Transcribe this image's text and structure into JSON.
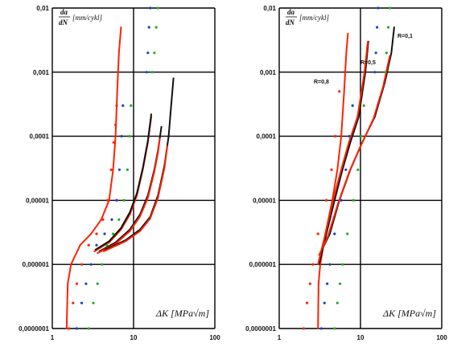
{
  "chart_data": [
    {
      "type": "line",
      "id": "left",
      "x_scale": "log",
      "y_scale": "log",
      "xlim": [
        1,
        100
      ],
      "ylim": [
        1e-07,
        0.01
      ],
      "x_ticks": [
        "1",
        "10",
        "100"
      ],
      "y_ticks": [
        "0,0000001",
        "0,000001",
        "0,00001",
        "0,0001",
        "0,001",
        "0,01"
      ],
      "ylabel_num": "da",
      "ylabel_den": "dN",
      "ylabel_unit": "[mm/cykl]",
      "xlabel": "ΔK [MPa√m]",
      "grid": true,
      "series": [
        {
          "color": "#ff2200",
          "style": "line",
          "points": [
            [
              1.5,
              1e-07
            ],
            [
              1.55,
              5e-07
            ],
            [
              1.7,
              1e-06
            ],
            [
              2.2,
              2e-06
            ],
            [
              3.0,
              3e-06
            ],
            [
              4.0,
              5e-06
            ],
            [
              5.0,
              1e-05
            ],
            [
              5.6,
              3e-05
            ],
            [
              6.0,
              0.0001
            ],
            [
              6.3,
              0.0005
            ],
            [
              6.6,
              0.002
            ],
            [
              7.0,
              0.005
            ]
          ]
        },
        {
          "color": "#ff2200",
          "style": "line",
          "points": [
            [
              3.3,
              1.6e-06
            ],
            [
              5,
              2.2e-06
            ],
            [
              7,
              3.5e-06
            ],
            [
              9,
              6e-06
            ],
            [
              11,
              1.2e-05
            ],
            [
              13,
              3e-05
            ],
            [
              15,
              8e-05
            ],
            [
              16.5,
              0.0002
            ]
          ]
        },
        {
          "color": "#111111",
          "style": "line",
          "points": [
            [
              3.4,
              1.7e-06
            ],
            [
              5,
              2.3e-06
            ],
            [
              7,
              3.7e-06
            ],
            [
              9,
              6.5e-06
            ],
            [
              11,
              1.3e-05
            ],
            [
              13,
              3.2e-05
            ],
            [
              15,
              8.5e-05
            ],
            [
              16.5,
              0.00022
            ]
          ]
        },
        {
          "color": "#111111",
          "style": "line",
          "points": [
            [
              3.8,
              1.6e-06
            ],
            [
              6,
              2.2e-06
            ],
            [
              9,
              3.5e-06
            ],
            [
              12,
              6e-06
            ],
            [
              15,
              1.2e-05
            ],
            [
              18,
              3e-05
            ],
            [
              20,
              6e-05
            ],
            [
              22,
              0.00014
            ]
          ]
        },
        {
          "color": "#ff2200",
          "style": "line",
          "points": [
            [
              3.6,
              1.5e-06
            ],
            [
              6,
              2.1e-06
            ],
            [
              9,
              3.3e-06
            ],
            [
              12,
              5.6e-06
            ],
            [
              15,
              1.1e-05
            ],
            [
              18,
              2.8e-05
            ],
            [
              20,
              5.6e-05
            ],
            [
              21,
              9e-05
            ]
          ]
        },
        {
          "color": "#111111",
          "style": "line",
          "points": [
            [
              4.5,
              1.7e-06
            ],
            [
              8,
              2.4e-06
            ],
            [
              12,
              3.5e-06
            ],
            [
              16,
              5.5e-06
            ],
            [
              20,
              1.2e-05
            ],
            [
              24,
              3.5e-05
            ],
            [
              27,
              0.0001
            ],
            [
              29,
              0.0003
            ],
            [
              31,
              0.0008
            ]
          ]
        },
        {
          "color": "#ff2200",
          "style": "line",
          "points": [
            [
              4.3,
              1.6e-06
            ],
            [
              8,
              2.3e-06
            ],
            [
              12,
              3.3e-06
            ],
            [
              16,
              5.2e-06
            ],
            [
              20,
              1.1e-05
            ],
            [
              24,
              3.2e-05
            ],
            [
              26,
              7e-05
            ]
          ]
        },
        {
          "color": "#ff2200",
          "style": "markers",
          "points": [
            [
              1.6,
              1e-07
            ],
            [
              1.8,
              2.5e-07
            ],
            [
              2.0,
              5e-07
            ],
            [
              2.3,
              1e-06
            ],
            [
              2.8,
              2e-06
            ],
            [
              3.5,
              3e-06
            ],
            [
              4.2,
              5e-06
            ],
            [
              4.8,
              1e-05
            ],
            [
              5.3,
              3e-05
            ],
            [
              5.7,
              8e-05
            ],
            [
              6.0,
              0.00015
            ],
            [
              6.2,
              0.0003
            ]
          ]
        },
        {
          "color": "#1144cc",
          "style": "markers",
          "points": [
            [
              2.0,
              1e-07
            ],
            [
              2.3,
              2.5e-07
            ],
            [
              2.6,
              5e-07
            ],
            [
              3.0,
              1e-06
            ],
            [
              3.5,
              2e-06
            ],
            [
              4.4,
              3e-06
            ],
            [
              5.4,
              5e-06
            ],
            [
              6.2,
              1e-05
            ],
            [
              6.7,
              3e-05
            ],
            [
              7.1,
              0.0001
            ],
            [
              7.4,
              0.0003
            ]
          ]
        },
        {
          "color": "#22aa22",
          "style": "markers",
          "points": [
            [
              2.8,
              1e-07
            ],
            [
              3.2,
              2.5e-07
            ],
            [
              3.6,
              5e-07
            ],
            [
              4.1,
              1e-06
            ],
            [
              4.7,
              2e-06
            ],
            [
              5.6,
              3e-06
            ],
            [
              6.6,
              5e-06
            ],
            [
              7.6,
              1e-05
            ],
            [
              8.4,
              3e-05
            ],
            [
              8.9,
              0.0001
            ],
            [
              9.3,
              0.0003
            ]
          ]
        },
        {
          "color": "#1144cc",
          "style": "markers",
          "points": [
            [
              14.5,
              0.001
            ],
            [
              15.0,
              0.002
            ],
            [
              15.5,
              0.005
            ],
            [
              16,
              0.01
            ]
          ]
        },
        {
          "color": "#22aa22",
          "style": "markers",
          "points": [
            [
              17,
              0.001
            ],
            [
              18,
              0.002
            ],
            [
              19,
              0.005
            ],
            [
              20,
              0.01
            ]
          ]
        }
      ]
    },
    {
      "type": "line",
      "id": "right",
      "x_scale": "log",
      "y_scale": "log",
      "xlim": [
        1,
        100
      ],
      "ylim": [
        1e-07,
        0.01
      ],
      "x_ticks": [
        "1",
        "10",
        "100"
      ],
      "y_ticks": [
        "0,0000001",
        "0,000001",
        "0,00001",
        "0,0001",
        "0,001",
        "0,01"
      ],
      "ylabel_num": "da",
      "ylabel_den": "dN",
      "ylabel_unit": "[mm/cykl]",
      "xlabel": "ΔK [MPa√m]",
      "grid": true,
      "annotations": [
        "R=0,1",
        "R=0,5",
        "R=0,8"
      ],
      "series": [
        {
          "color": "#ff2200",
          "style": "line",
          "points": [
            [
              3.0,
              1e-07
            ],
            [
              3.05,
              5e-07
            ],
            [
              3.2,
              1e-06
            ],
            [
              3.7,
              3e-06
            ],
            [
              4.5,
              1e-05
            ],
            [
              5.2,
              3e-05
            ],
            [
              5.8,
              0.0001
            ],
            [
              6.3,
              0.0005
            ],
            [
              6.7,
              0.002
            ],
            [
              7.0,
              0.004
            ]
          ]
        },
        {
          "color": "#111111",
          "style": "line",
          "points": [
            [
              3.1,
              1e-06
            ],
            [
              3.8,
              3e-06
            ],
            [
              4.8,
              1e-05
            ],
            [
              6.0,
              3e-05
            ],
            [
              7.5,
              8e-05
            ],
            [
              9.5,
              0.0002
            ],
            [
              11.5,
              0.001
            ],
            [
              12.5,
              0.003
            ]
          ]
        },
        {
          "color": "#ff2200",
          "style": "line",
          "points": [
            [
              3.0,
              1e-06
            ],
            [
              3.7,
              3e-06
            ],
            [
              4.6,
              1e-05
            ],
            [
              5.8,
              3e-05
            ],
            [
              7.2,
              8e-05
            ],
            [
              9.2,
              0.0002
            ],
            [
              11.2,
              0.001
            ],
            [
              12.3,
              0.003
            ]
          ]
        },
        {
          "color": "#111111",
          "style": "line",
          "points": [
            [
              3.2,
              1.5e-06
            ],
            [
              4.2,
              3e-06
            ],
            [
              5.5,
              1e-05
            ],
            [
              7.5,
              3e-05
            ],
            [
              10.5,
              8e-05
            ],
            [
              15,
              0.0002
            ],
            [
              20,
              0.0007
            ],
            [
              24,
              0.002
            ],
            [
              26,
              0.005
            ]
          ]
        },
        {
          "color": "#ff2200",
          "style": "line",
          "points": [
            [
              3.1,
              1.4e-06
            ],
            [
              4.0,
              2.8e-06
            ],
            [
              5.3,
              9e-06
            ],
            [
              7.3,
              2.8e-05
            ],
            [
              10.3,
              7.5e-05
            ],
            [
              14.5,
              0.00019
            ],
            [
              19,
              0.0006
            ],
            [
              23,
              0.0018
            ]
          ]
        },
        {
          "color": "#ff2200",
          "style": "markers",
          "points": [
            [
              2.0,
              1e-07
            ],
            [
              2.2,
              2.5e-07
            ],
            [
              2.4,
              5e-07
            ],
            [
              2.6,
              1e-06
            ],
            [
              3.0,
              3e-06
            ],
            [
              3.8,
              1e-05
            ],
            [
              4.4,
              3e-05
            ],
            [
              4.9,
              0.0001
            ],
            [
              5.5,
              0.0005
            ]
          ]
        },
        {
          "color": "#1144cc",
          "style": "markers",
          "points": [
            [
              3.3,
              1e-07
            ],
            [
              3.6,
              2.5e-07
            ],
            [
              3.9,
              5e-07
            ],
            [
              4.2,
              1e-06
            ],
            [
              4.8,
              3e-06
            ],
            [
              5.8,
              1e-05
            ],
            [
              6.6,
              3e-05
            ],
            [
              7.3,
              0.0001
            ],
            [
              8.0,
              0.0003
            ]
          ]
        },
        {
          "color": "#22aa22",
          "style": "markers",
          "points": [
            [
              4.8,
              1e-07
            ],
            [
              5.2,
              2.5e-07
            ],
            [
              5.6,
              5e-07
            ],
            [
              6.0,
              1e-06
            ],
            [
              6.9,
              3e-06
            ],
            [
              8.2,
              1e-05
            ],
            [
              9.3,
              3e-05
            ],
            [
              10.2,
              0.0001
            ],
            [
              11,
              0.0003
            ]
          ]
        },
        {
          "color": "#1144cc",
          "style": "markers",
          "points": [
            [
              15,
              0.001
            ],
            [
              15.5,
              0.002
            ],
            [
              16,
              0.005
            ],
            [
              16.5,
              0.01
            ]
          ]
        },
        {
          "color": "#22aa22",
          "style": "markers",
          "points": [
            [
              20,
              0.001
            ],
            [
              21,
              0.002
            ],
            [
              22,
              0.005
            ],
            [
              23,
              0.01
            ]
          ]
        }
      ]
    }
  ]
}
